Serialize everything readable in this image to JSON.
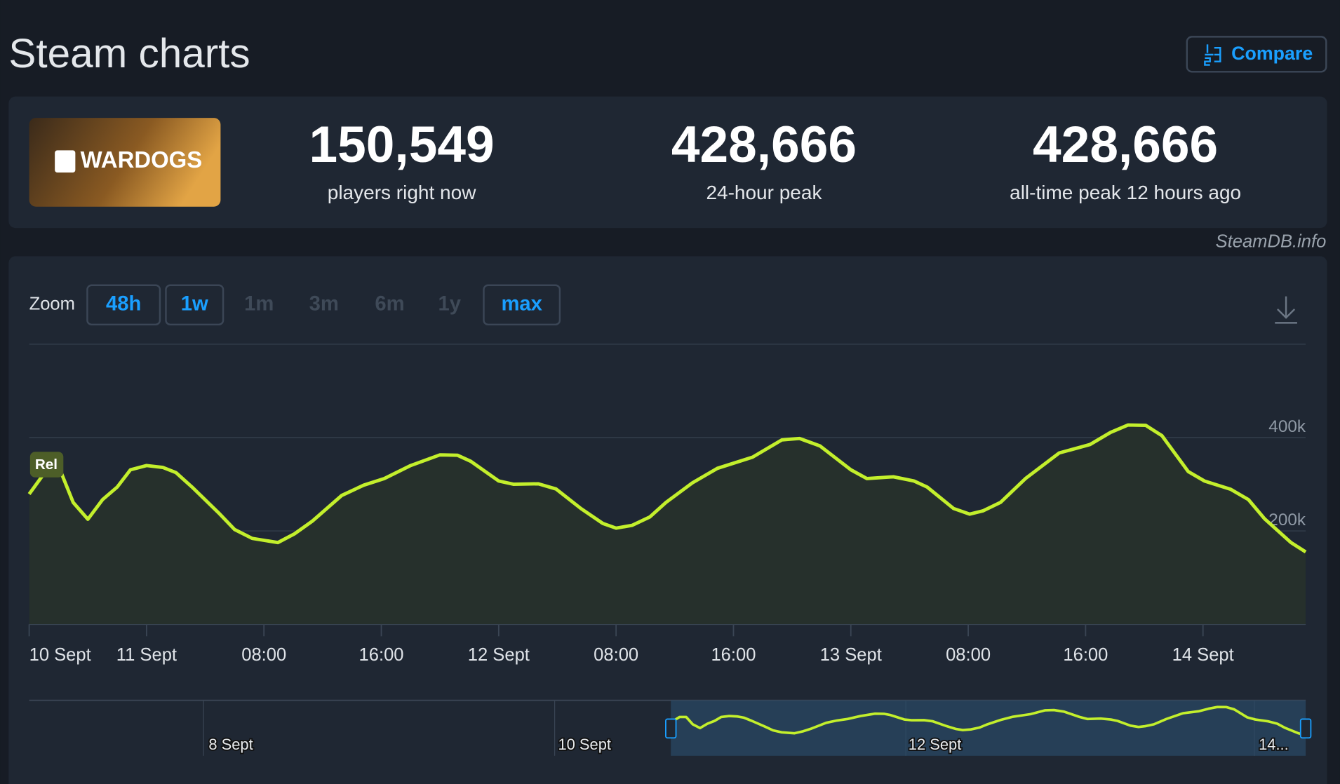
{
  "header": {
    "title": "Steam charts",
    "compare": "Compare"
  },
  "game": {
    "name": "WARDOGS"
  },
  "stats": [
    {
      "value": "150,549",
      "label": "players right now"
    },
    {
      "value": "428,666",
      "label": "24-hour peak"
    },
    {
      "value": "428,666",
      "label": "all-time peak 12 hours ago"
    }
  ],
  "watermark": "SteamDB.info",
  "zoom": {
    "label": "Zoom",
    "options": [
      {
        "text": "48h",
        "active": true
      },
      {
        "text": "1w",
        "active": true
      },
      {
        "text": "1m",
        "active": false
      },
      {
        "text": "3m",
        "active": false
      },
      {
        "text": "6m",
        "active": false
      },
      {
        "text": "1y",
        "active": false
      },
      {
        "text": "max",
        "active": true
      }
    ]
  },
  "chart_data": {
    "type": "line",
    "annotation": "Rel",
    "x": [
      0,
      1.2,
      2.1,
      3.0,
      4.0,
      5.0,
      6.0,
      6.9,
      8.0,
      9.1,
      10.0,
      11.1,
      12.9,
      14.0,
      15.2,
      16.95,
      18.1,
      19.3,
      21.3,
      22.8,
      24.2,
      26.0,
      28.0,
      29.2,
      30.1,
      32.0,
      33.0,
      34.7,
      35.9,
      37.6,
      39.1,
      40.0,
      41.1,
      42.3,
      43.4,
      45.2,
      46.9,
      49.3,
      51.3,
      52.5,
      53.9,
      56.0,
      57.1,
      58.9,
      60.3,
      61.2,
      63.0,
      64.1,
      65.0,
      66.2,
      67.9,
      70.2,
      72.3,
      73.7,
      74.9,
      76.1,
      77.2,
      79.0,
      80.1,
      81.9,
      83.1,
      84.2,
      86.0,
      87.0
    ],
    "series": [
      {
        "color": "#c3ef2c",
        "values": [
          279000,
          331000,
          331000,
          261000,
          225000,
          267000,
          294000,
          331000,
          340000,
          336000,
          325000,
          294000,
          239000,
          203000,
          184000,
          175000,
          194000,
          221000,
          276000,
          298000,
          312000,
          340000,
          363000,
          362000,
          349000,
          307000,
          300000,
          301000,
          290000,
          248000,
          216000,
          206000,
          212000,
          230000,
          261000,
          303000,
          334000,
          358000,
          395000,
          398000,
          382000,
          331000,
          312000,
          316000,
          307000,
          294000,
          248000,
          236000,
          243000,
          261000,
          312000,
          367000,
          385000,
          411000,
          427000,
          426000,
          404000,
          327000,
          307000,
          289000,
          267000,
          226000,
          175000,
          155000
        ]
      }
    ],
    "xlim": [
      0,
      87
    ],
    "xticks": [
      {
        "value": 0,
        "label": "10 Sept"
      },
      {
        "value": 8,
        "label": "11 Sept"
      },
      {
        "value": 16,
        "label": "08:00"
      },
      {
        "value": 24,
        "label": "16:00"
      },
      {
        "value": 32,
        "label": "12 Sept"
      },
      {
        "value": 40,
        "label": "08:00"
      },
      {
        "value": 48,
        "label": "16:00"
      },
      {
        "value": 56,
        "label": "13 Sept"
      },
      {
        "value": 64,
        "label": "08:00"
      },
      {
        "value": 72,
        "label": "16:00"
      },
      {
        "value": 80,
        "label": "14 Sept"
      }
    ],
    "ylim": [
      0,
      600000
    ],
    "yticks": [
      0,
      {
        "value": 200000,
        "label": "200k"
      },
      {
        "value": 400000,
        "label": "400k"
      }
    ],
    "grid": true
  },
  "navigator": {
    "labels": [
      "8 Sept",
      "10 Sept",
      "12 Sept",
      "14..."
    ]
  }
}
